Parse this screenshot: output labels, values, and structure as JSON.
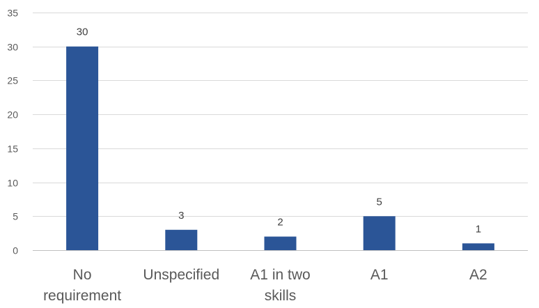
{
  "chart_data": {
    "type": "bar",
    "categories": [
      "No requirement",
      "Unspecified",
      "A1 in two skills",
      "A1",
      "A2"
    ],
    "values": [
      30,
      3,
      2,
      5,
      1
    ],
    "data_labels": [
      "30",
      "3",
      "2",
      "5",
      "1"
    ],
    "title": "",
    "xlabel": "",
    "ylabel": "",
    "ylim": [
      0,
      35
    ],
    "yticks": [
      0,
      5,
      10,
      15,
      20,
      25,
      30,
      35
    ],
    "grid": true,
    "legend": false,
    "colors": {
      "bar": "#2B5597",
      "grid": "#D9D9D9",
      "text": "#595959"
    }
  }
}
